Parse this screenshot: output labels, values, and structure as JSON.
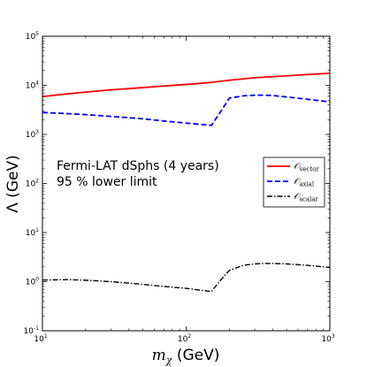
{
  "chart_data": {
    "type": "line",
    "xscale": "log",
    "yscale": "log",
    "xlim": [
      10,
      1000
    ],
    "ylim": [
      0.1,
      100000
    ],
    "grid": false,
    "xlabel": "m_χ (GeV)",
    "xlabel_main": "m",
    "xlabel_sub": "χ",
    "xlabel_unit": " (GeV)",
    "ylabel": "Λ (GeV)",
    "x_ticks": [
      {
        "value": 10,
        "base": "10",
        "exp": "1"
      },
      {
        "value": 100,
        "base": "10",
        "exp": "2"
      },
      {
        "value": 1000,
        "base": "10",
        "exp": "3"
      }
    ],
    "y_ticks": [
      {
        "value": 0.1,
        "base": "10",
        "exp": "-1"
      },
      {
        "value": 1,
        "base": "10",
        "exp": "0"
      },
      {
        "value": 10,
        "base": "10",
        "exp": "1"
      },
      {
        "value": 100,
        "base": "10",
        "exp": "2"
      },
      {
        "value": 1000,
        "base": "10",
        "exp": "3"
      },
      {
        "value": 10000,
        "base": "10",
        "exp": "4"
      },
      {
        "value": 100000,
        "base": "10",
        "exp": "5"
      }
    ],
    "annotations": [
      "Fermi-LAT dSphs (4 years)",
      "95 % lower limit"
    ],
    "legend_position": "right",
    "series": [
      {
        "name": "O_vector",
        "symbol": "𝒪",
        "sub": "vector",
        "color": "#ff0000",
        "style": "solid",
        "x": [
          10,
          15,
          20,
          30,
          50,
          70,
          100,
          150,
          200,
          300,
          500,
          700,
          1000
        ],
        "y": [
          5900,
          6700,
          7300,
          8100,
          9000,
          9700,
          10400,
          11500,
          12700,
          14300,
          15600,
          16600,
          17600
        ]
      },
      {
        "name": "O_axial",
        "symbol": "𝒪",
        "sub": "axial",
        "color": "#0000ff",
        "style": "dashed",
        "x": [
          10,
          15,
          20,
          30,
          50,
          70,
          100,
          150,
          175,
          200,
          250,
          300,
          350,
          400,
          500,
          700,
          1000
        ],
        "y": [
          2800,
          2650,
          2530,
          2330,
          2080,
          1880,
          1700,
          1530,
          3000,
          5500,
          6100,
          6300,
          6300,
          6200,
          5800,
          5200,
          4600
        ]
      },
      {
        "name": "O_scalar",
        "symbol": "𝒪",
        "sub": "scalar",
        "color": "#000000",
        "style": "dashdot",
        "x": [
          10,
          15,
          20,
          30,
          50,
          70,
          100,
          150,
          175,
          200,
          250,
          300,
          350,
          400,
          500,
          700,
          1000
        ],
        "y": [
          1.08,
          1.1,
          1.07,
          1.0,
          0.88,
          0.8,
          0.73,
          0.63,
          1.1,
          1.7,
          2.15,
          2.3,
          2.35,
          2.35,
          2.3,
          2.15,
          1.95
        ]
      }
    ]
  }
}
